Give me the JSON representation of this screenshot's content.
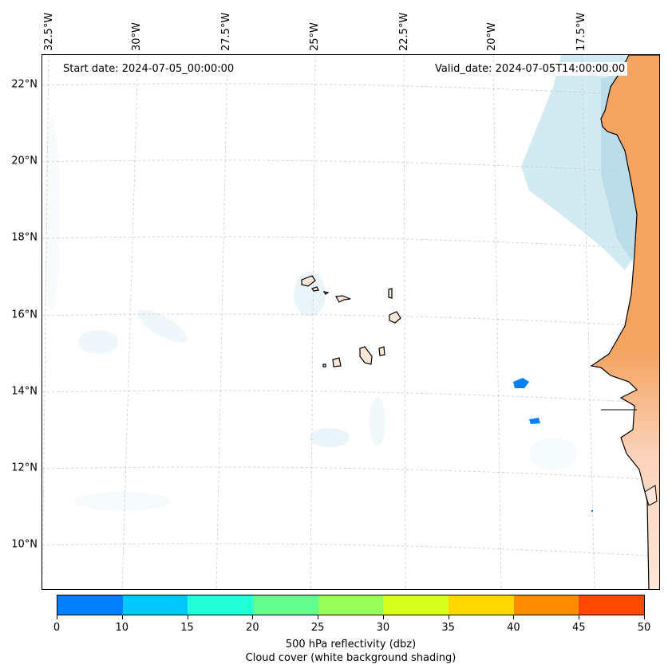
{
  "map": {
    "start_date": "Start date: 2024-07-05_00:00:00",
    "valid_date": "Valid_date: 2024-07-05T14:00:00.00",
    "lat_labels": [
      "22°N",
      "20°N",
      "18°N",
      "16°N",
      "14°N",
      "12°N",
      "10°N"
    ],
    "lon_labels": [
      "32.5°W",
      "30°W",
      "27.5°W",
      "25°W",
      "22.5°W",
      "20°W",
      "17.5°W"
    ],
    "land_color": "#f4a460",
    "cloud_color": "#add8e6",
    "coast_color": "#000000",
    "echo_color": "#0080ff"
  },
  "colorbar": {
    "colors": [
      "#0080ff",
      "#00c8ff",
      "#20ffd8",
      "#60ff90",
      "#98ff58",
      "#d8ff20",
      "#ffd800",
      "#ff8c00",
      "#ff4800"
    ],
    "ticks": [
      "0",
      "10",
      "15",
      "20",
      "25",
      "30",
      "35",
      "40",
      "45",
      "50"
    ],
    "label_line1": "500 hPa reflectivity (dbz)",
    "label_line2": "Cloud cover (white background shading)"
  }
}
